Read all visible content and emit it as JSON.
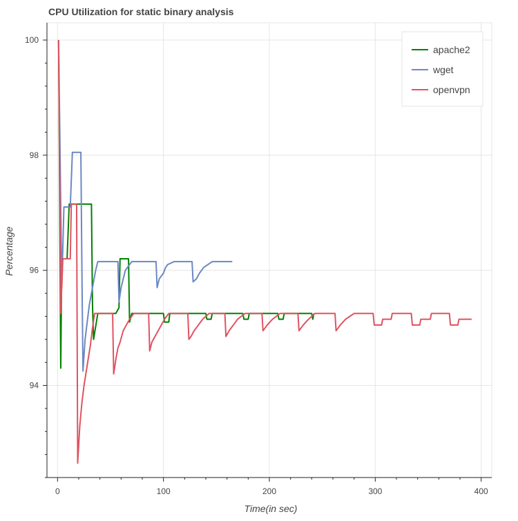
{
  "chart_data": {
    "type": "line",
    "title": "CPU Utilization for static binary analysis",
    "xlabel": "Time(in sec)",
    "ylabel": "Percentage",
    "xlim": [
      -10,
      410
    ],
    "ylim": [
      92.4,
      100.3
    ],
    "xticks": [
      0,
      100,
      200,
      300,
      400
    ],
    "yticks": [
      94,
      96,
      98,
      100
    ],
    "grid": true,
    "legend_position": "top-right",
    "series": [
      {
        "name": "apache2",
        "color": "#008000",
        "points": [
          [
            1,
            100
          ],
          [
            3,
            94.3
          ],
          [
            4,
            96.2
          ],
          [
            9,
            96.2
          ],
          [
            11,
            97.15
          ],
          [
            13,
            97.15
          ],
          [
            32,
            97.15
          ],
          [
            33,
            95.4
          ],
          [
            34,
            94.8
          ],
          [
            38,
            95.25
          ],
          [
            55,
            95.25
          ],
          [
            58,
            95.35
          ],
          [
            59,
            96.2
          ],
          [
            67,
            96.2
          ],
          [
            68,
            95.1
          ],
          [
            70,
            95.25
          ],
          [
            100,
            95.25
          ],
          [
            101,
            95.1
          ],
          [
            105,
            95.1
          ],
          [
            106,
            95.25
          ],
          [
            140,
            95.25
          ],
          [
            141,
            95.15
          ],
          [
            145,
            95.15
          ],
          [
            146,
            95.25
          ],
          [
            175,
            95.25
          ],
          [
            176,
            95.15
          ],
          [
            180,
            95.15
          ],
          [
            181,
            95.25
          ],
          [
            208,
            95.25
          ],
          [
            209,
            95.15
          ],
          [
            213,
            95.15
          ],
          [
            214,
            95.25
          ],
          [
            240,
            95.25
          ],
          [
            241,
            95.15
          ],
          [
            242,
            95.25
          ]
        ]
      },
      {
        "name": "wget",
        "color": "#6b88c4",
        "points": [
          [
            1,
            100
          ],
          [
            4,
            95.7
          ],
          [
            6,
            97.1
          ],
          [
            12,
            97.1
          ],
          [
            14,
            98.05
          ],
          [
            22,
            98.05
          ],
          [
            23,
            96.0
          ],
          [
            24,
            94.25
          ],
          [
            26,
            94.8
          ],
          [
            30,
            95.4
          ],
          [
            34,
            95.8
          ],
          [
            36,
            96.0
          ],
          [
            38,
            96.15
          ],
          [
            57,
            96.15
          ],
          [
            58,
            95.45
          ],
          [
            60,
            95.7
          ],
          [
            62,
            95.85
          ],
          [
            64,
            96.0
          ],
          [
            66,
            96.05
          ],
          [
            68,
            96.1
          ],
          [
            70,
            96.15
          ],
          [
            93,
            96.15
          ],
          [
            94,
            95.7
          ],
          [
            96,
            95.85
          ],
          [
            100,
            95.95
          ],
          [
            102,
            96.05
          ],
          [
            104,
            96.1
          ],
          [
            110,
            96.15
          ],
          [
            127,
            96.15
          ],
          [
            128,
            95.8
          ],
          [
            131,
            95.85
          ],
          [
            134,
            95.95
          ],
          [
            138,
            96.05
          ],
          [
            146,
            96.15
          ],
          [
            165,
            96.15
          ]
        ]
      },
      {
        "name": "openvpn",
        "color": "#e05260",
        "points": [
          [
            1,
            100
          ],
          [
            3,
            95.25
          ],
          [
            5,
            96.2
          ],
          [
            12,
            96.2
          ],
          [
            13,
            97.15
          ],
          [
            18,
            97.15
          ],
          [
            19,
            92.65
          ],
          [
            21,
            93.3
          ],
          [
            23,
            93.7
          ],
          [
            25,
            94.0
          ],
          [
            28,
            94.35
          ],
          [
            31,
            94.7
          ],
          [
            33,
            95.0
          ],
          [
            35,
            95.25
          ],
          [
            52,
            95.25
          ],
          [
            53,
            94.2
          ],
          [
            55,
            94.45
          ],
          [
            57,
            94.65
          ],
          [
            59,
            94.75
          ],
          [
            62,
            94.95
          ],
          [
            65,
            95.05
          ],
          [
            68,
            95.15
          ],
          [
            72,
            95.25
          ],
          [
            86,
            95.25
          ],
          [
            87,
            94.6
          ],
          [
            89,
            94.75
          ],
          [
            92,
            94.85
          ],
          [
            95,
            94.95
          ],
          [
            98,
            95.05
          ],
          [
            101,
            95.15
          ],
          [
            105,
            95.25
          ],
          [
            123,
            95.25
          ],
          [
            124,
            94.8
          ],
          [
            126,
            94.85
          ],
          [
            129,
            94.95
          ],
          [
            133,
            95.05
          ],
          [
            137,
            95.15
          ],
          [
            143,
            95.25
          ],
          [
            158,
            95.25
          ],
          [
            159,
            94.85
          ],
          [
            162,
            94.95
          ],
          [
            166,
            95.05
          ],
          [
            170,
            95.15
          ],
          [
            177,
            95.25
          ],
          [
            193,
            95.25
          ],
          [
            194,
            94.95
          ],
          [
            198,
            95.05
          ],
          [
            203,
            95.15
          ],
          [
            210,
            95.25
          ],
          [
            227,
            95.25
          ],
          [
            228,
            94.95
          ],
          [
            232,
            95.05
          ],
          [
            237,
            95.15
          ],
          [
            243,
            95.25
          ],
          [
            262,
            95.25
          ],
          [
            263,
            94.95
          ],
          [
            267,
            95.05
          ],
          [
            272,
            95.15
          ],
          [
            280,
            95.25
          ],
          [
            298,
            95.25
          ],
          [
            299,
            95.05
          ],
          [
            306,
            95.05
          ],
          [
            307,
            95.15
          ],
          [
            315,
            95.15
          ],
          [
            316,
            95.25
          ],
          [
            334,
            95.25
          ],
          [
            335,
            95.05
          ],
          [
            342,
            95.05
          ],
          [
            343,
            95.15
          ],
          [
            352,
            95.15
          ],
          [
            353,
            95.25
          ],
          [
            370,
            95.25
          ],
          [
            371,
            95.05
          ],
          [
            378,
            95.05
          ],
          [
            379,
            95.15
          ],
          [
            391,
            95.15
          ]
        ]
      }
    ]
  }
}
